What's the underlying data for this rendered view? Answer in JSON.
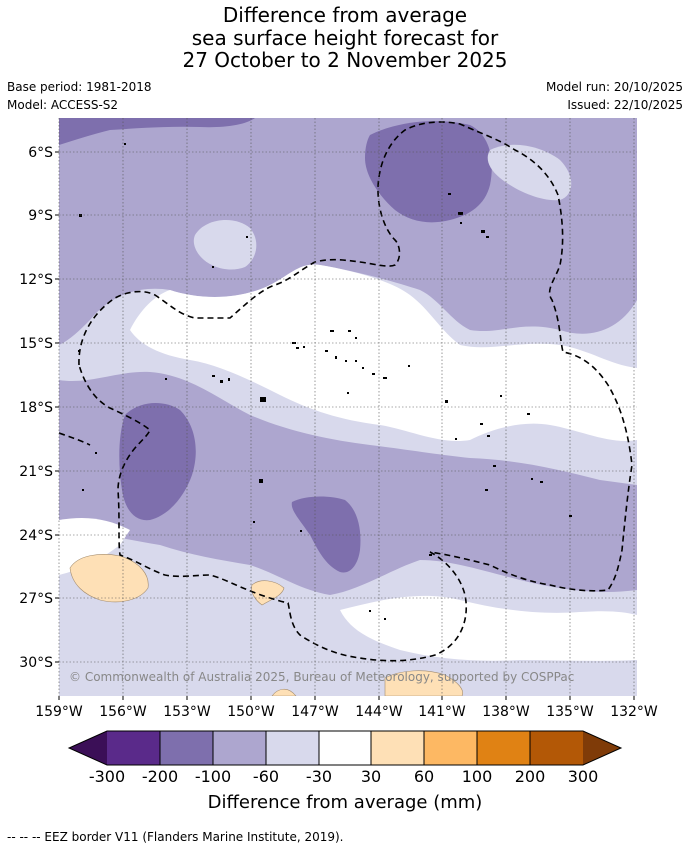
{
  "title": {
    "line1": "Difference from average",
    "line2": "sea surface height forecast for",
    "line3": "27 October to 2 November 2025"
  },
  "meta": {
    "base_period": "Base period: 1981-2018",
    "model": "Model: ACCESS-S2",
    "model_run": "Model run: 20/10/2025",
    "issued": "Issued: 22/10/2025"
  },
  "map": {
    "lat_labels": [
      "6°S",
      "9°S",
      "12°S",
      "15°S",
      "18°S",
      "21°S",
      "24°S",
      "27°S",
      "30°S"
    ],
    "lon_labels": [
      "159°W",
      "156°W",
      "153°W",
      "150°W",
      "147°W",
      "144°W",
      "141°W",
      "138°W",
      "135°W",
      "132°W"
    ],
    "copyright": "© Commonwealth of Australia 2025, Bureau of Meteorology, supported by COSPPac"
  },
  "colorbar": {
    "ticks": [
      "-300",
      "-200",
      "-100",
      "-60",
      "-30",
      "30",
      "60",
      "100",
      "200",
      "300"
    ],
    "colors": [
      "#3b0f57",
      "#5a2a8a",
      "#7e6fad",
      "#ada6cf",
      "#d8d9ec",
      "#ffffff",
      "#fee0b6",
      "#fdb863",
      "#e08214",
      "#b35806",
      "#7f3b08"
    ],
    "label": "Difference from average (mm)"
  },
  "footnote": "--  --  -- EEZ border V11 (Flanders Marine Institute, 2019)."
}
